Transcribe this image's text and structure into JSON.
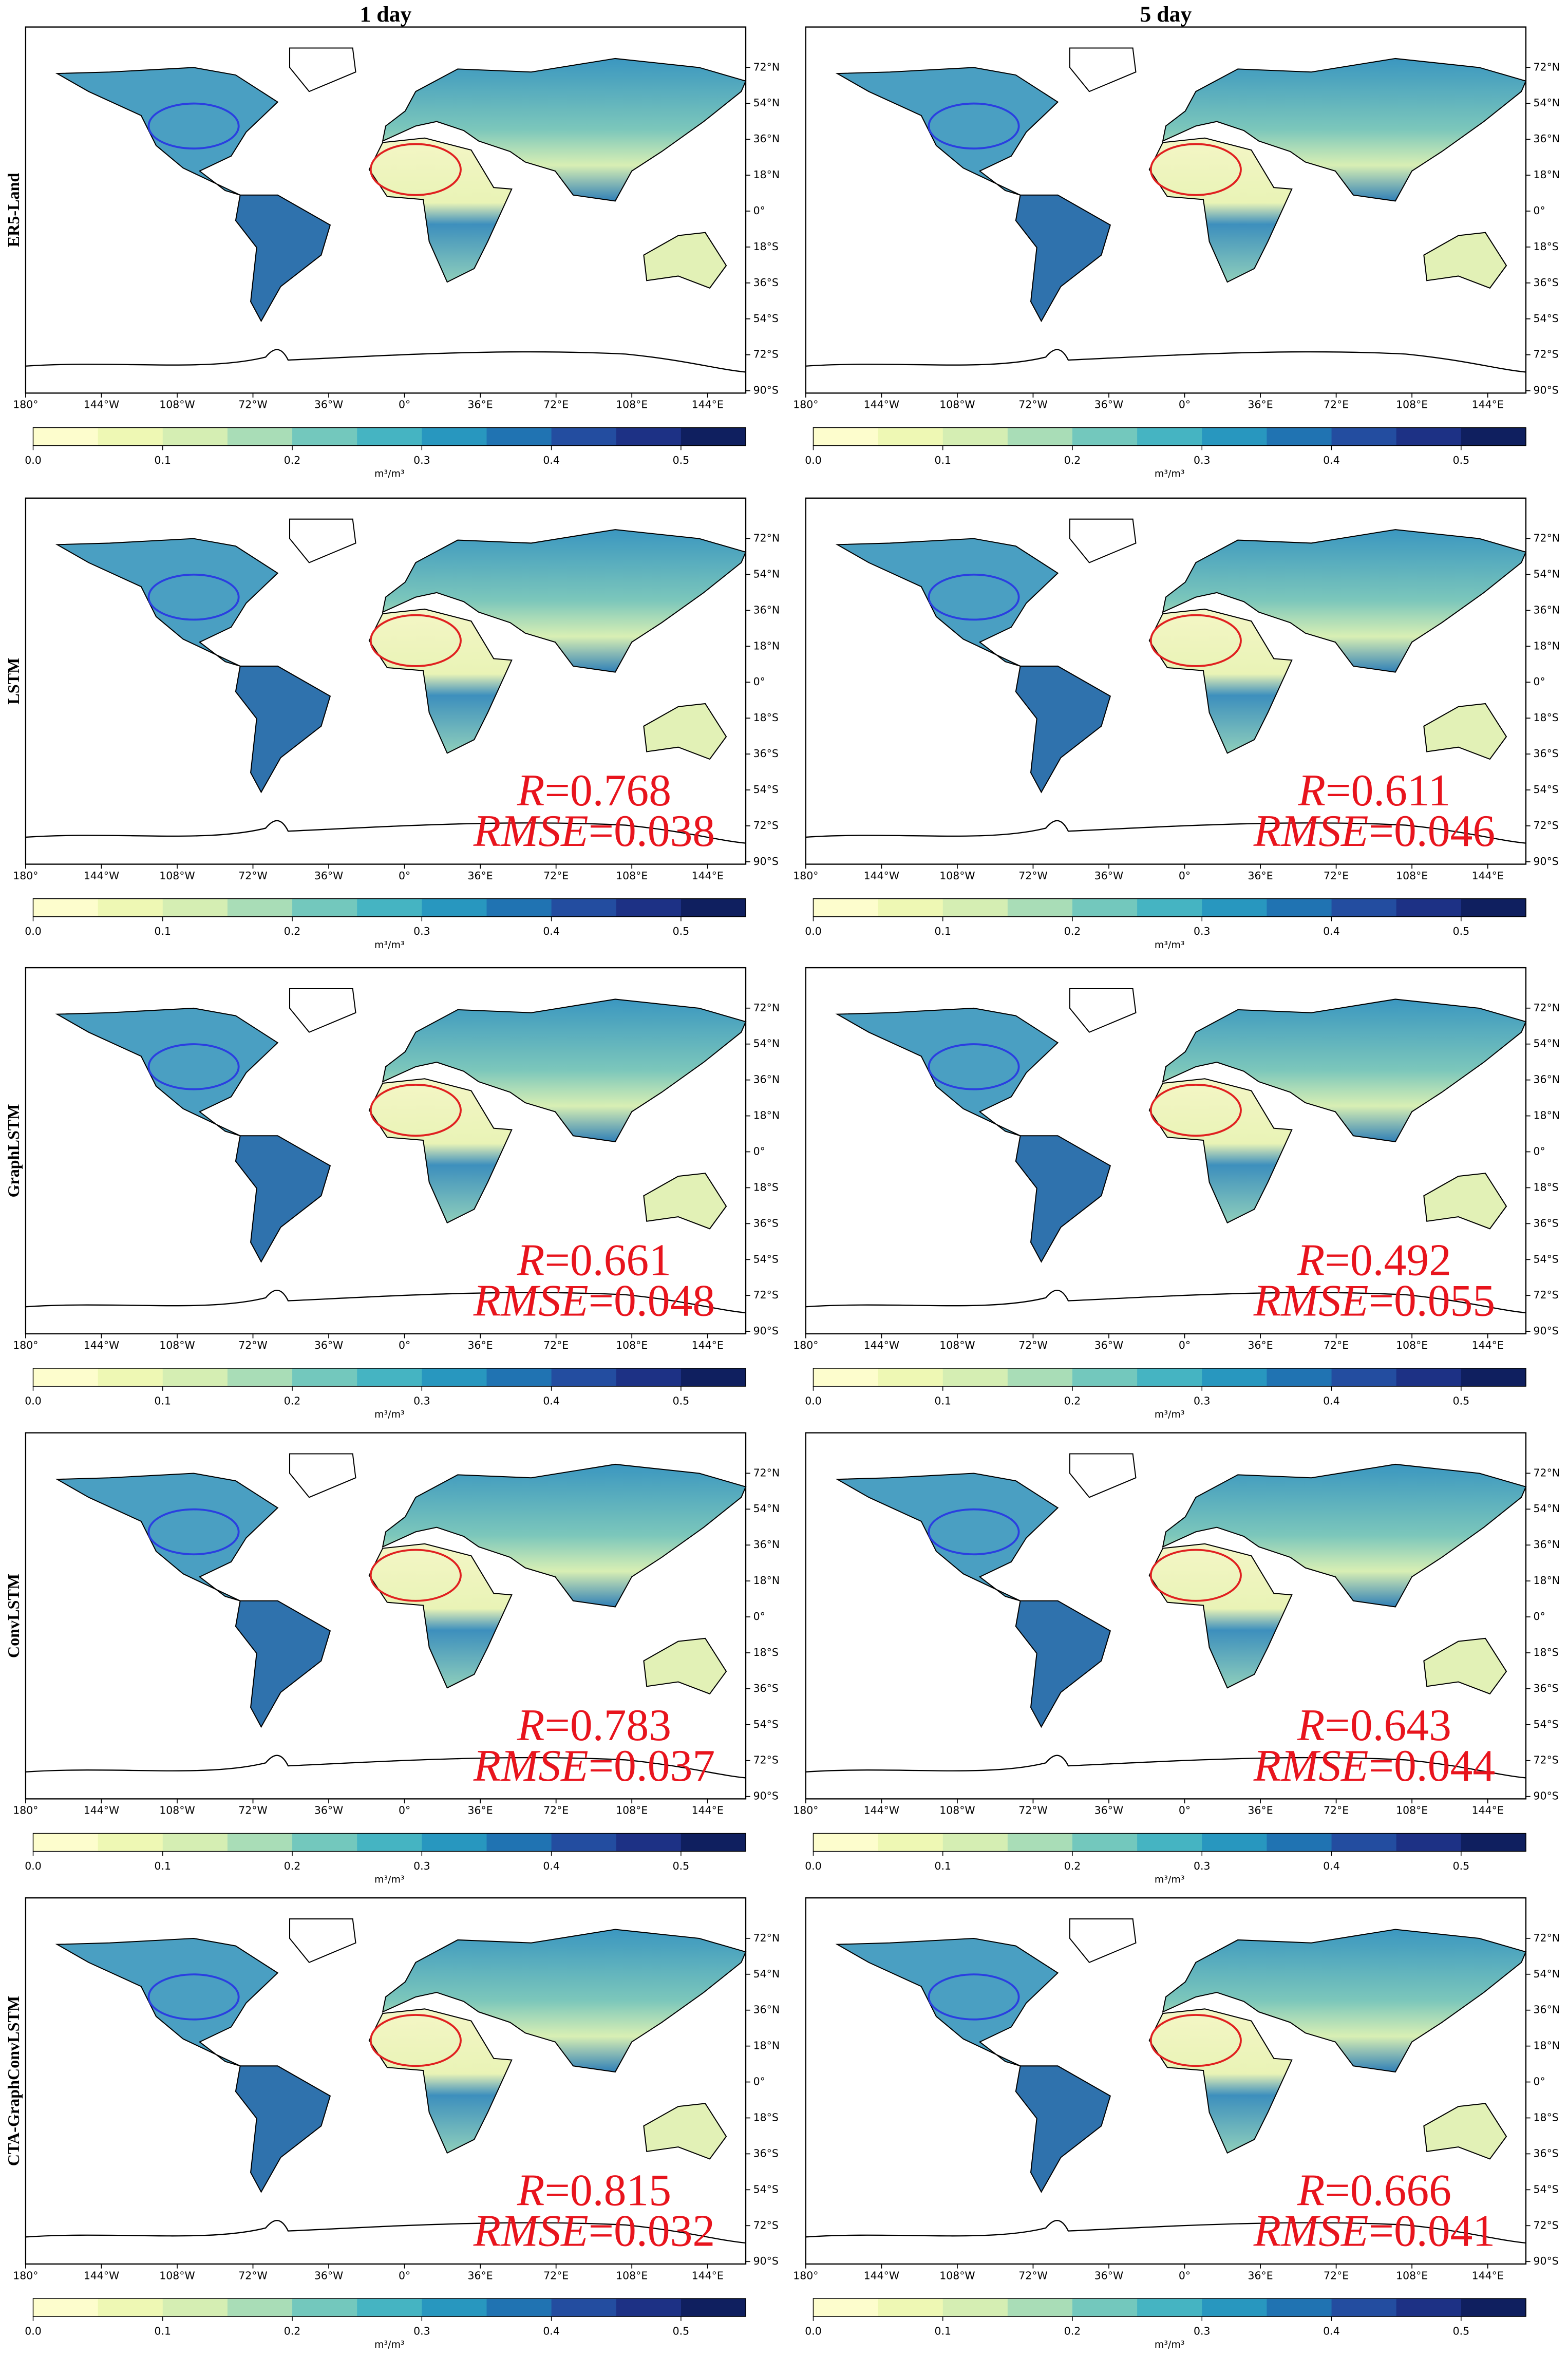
{
  "column_titles": [
    "1 day",
    "5 day"
  ],
  "rows": [
    {
      "label": "ER5-Land"
    },
    {
      "label": "LSTM",
      "metrics": [
        {
          "R": 0.768,
          "RMSE": 0.038
        },
        {
          "R": 0.611,
          "RMSE": 0.046
        }
      ]
    },
    {
      "label": "GraphLSTM",
      "metrics": [
        {
          "R": 0.661,
          "RMSE": 0.048
        },
        {
          "R": 0.492,
          "RMSE": 0.055
        }
      ]
    },
    {
      "label": "ConvLSTM",
      "metrics": [
        {
          "R": 0.783,
          "RMSE": 0.037
        },
        {
          "R": 0.643,
          "RMSE": 0.044
        }
      ]
    },
    {
      "label": "CTA-GraphConvLSTM",
      "metrics": [
        {
          "R": 0.815,
          "RMSE": 0.032
        },
        {
          "R": 0.666,
          "RMSE": 0.041
        }
      ]
    }
  ],
  "metric_names": {
    "R": "R",
    "RMSE": "RMSE",
    "equals": "="
  },
  "lon_ticks": [
    {
      "value": -180,
      "label": "180°"
    },
    {
      "value": -144,
      "label": "144°W"
    },
    {
      "value": -108,
      "label": "108°W"
    },
    {
      "value": -72,
      "label": "72°W"
    },
    {
      "value": -36,
      "label": "36°W"
    },
    {
      "value": 0,
      "label": "0°"
    },
    {
      "value": 36,
      "label": "36°E"
    },
    {
      "value": 72,
      "label": "72°E"
    },
    {
      "value": 108,
      "label": "108°E"
    },
    {
      "value": 144,
      "label": "144°E"
    }
  ],
  "lat_ticks": [
    {
      "value": 72,
      "label": "72°N"
    },
    {
      "value": 54,
      "label": "54°N"
    },
    {
      "value": 36,
      "label": "36°N"
    },
    {
      "value": 18,
      "label": "18°N"
    },
    {
      "value": 0,
      "label": "0°"
    },
    {
      "value": -18,
      "label": "18°S"
    },
    {
      "value": -36,
      "label": "36°S"
    },
    {
      "value": -54,
      "label": "54°S"
    },
    {
      "value": -72,
      "label": "72°S"
    },
    {
      "value": -90,
      "label": "90°S"
    }
  ],
  "colorbar": {
    "lim": [
      0,
      0.55
    ],
    "colors": [
      "#fdfdcd",
      "#eef8b4",
      "#d5eeb3",
      "#a9ddb7",
      "#73c8bd",
      "#45b4c2",
      "#2897bf",
      "#2073b2",
      "#234da0",
      "#1d3185",
      "#0f1f5f"
    ],
    "ticks": [
      {
        "value": 0,
        "label": "0.0"
      },
      {
        "value": 0.1,
        "label": "0.1"
      },
      {
        "value": 0.2,
        "label": "0.2"
      },
      {
        "value": 0.3,
        "label": "0.3"
      },
      {
        "value": 0.4,
        "label": "0.4"
      },
      {
        "value": 0.5,
        "label": "0.5"
      }
    ],
    "unit": "m³/m³"
  }
}
